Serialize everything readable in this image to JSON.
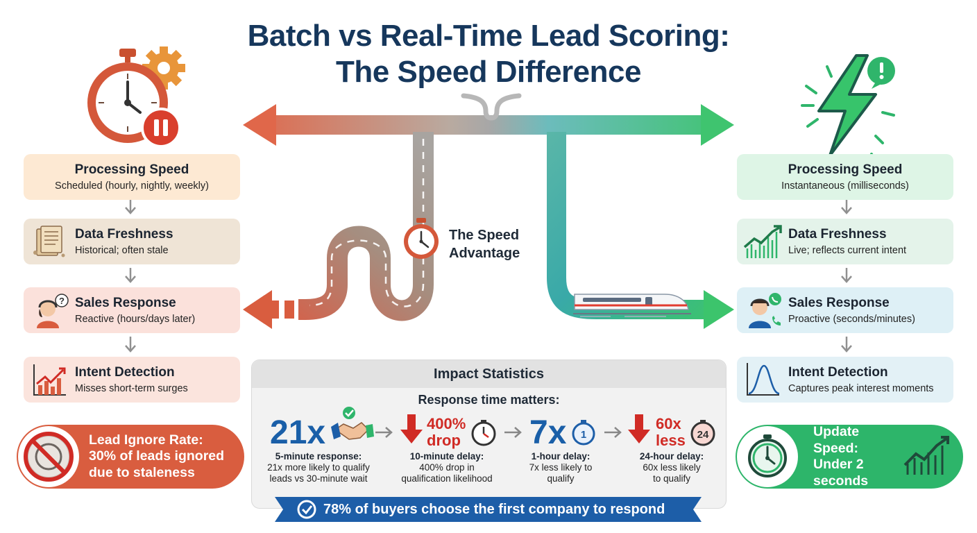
{
  "title_line1": "Batch vs Real-Time Lead Scoring:",
  "title_line2": "The Speed Difference",
  "center_label_line1": "The Speed",
  "center_label_line2": "Advantage",
  "left_cards": [
    {
      "heading": "Processing Speed",
      "desc": "Scheduled (hourly, nightly, weekly)"
    },
    {
      "heading": "Data Freshness",
      "desc": "Historical; often stale"
    },
    {
      "heading": "Sales Response",
      "desc": "Reactive (hours/days later)"
    },
    {
      "heading": "Intent Detection",
      "desc": "Misses short-term surges"
    }
  ],
  "right_cards": [
    {
      "heading": "Processing Speed",
      "desc": "Instantaneous (milliseconds)"
    },
    {
      "heading": "Data Freshness",
      "desc": "Live; reflects current intent"
    },
    {
      "heading": "Sales Response",
      "desc": "Proactive (seconds/minutes)"
    },
    {
      "heading": "Intent Detection",
      "desc": "Captures peak interest moments"
    }
  ],
  "left_pill": {
    "line1": "Lead Ignore Rate:",
    "line2": "30% of leads ignored",
    "line3": "due to staleness"
  },
  "right_pill": {
    "line1": "Update Speed:",
    "line2": "Under 2",
    "line3": "seconds"
  },
  "stats": {
    "heading": "Impact Statistics",
    "subheading": "Response time matters:",
    "items": [
      {
        "big": "21x",
        "label": "5-minute response:",
        "desc1": "21x more likely to qualify",
        "desc2": "leads vs 30-minute wait"
      },
      {
        "big_line1": "400%",
        "big_line2": "drop",
        "label": "10-minute delay:",
        "desc1": "400% drop in",
        "desc2": "qualification likelihood"
      },
      {
        "big": "7x",
        "label": "1-hour delay:",
        "desc1": "7x less likely to",
        "desc2": "qualify"
      },
      {
        "big_line1": "60x",
        "big_line2": "less",
        "label": "24-hour delay:",
        "desc1": "60x less likely",
        "desc2": "to qualify"
      }
    ],
    "timer_labels": [
      "1",
      "24"
    ],
    "banner": "78% of buyers choose the first company to respond"
  },
  "colors": {
    "title": "#16375c",
    "batch_accent": "#d95d3f",
    "realtime_accent": "#2db56a",
    "stat_blue": "#1a5fa8",
    "stat_red": "#d02b25",
    "banner": "#1d5ea8"
  },
  "icons": {
    "batch_header": "stopwatch-gear-pause-icon",
    "realtime_header": "lightning-bolt-alert-icon",
    "center": "stopwatch-icon",
    "train": "bullet-train-icon"
  }
}
